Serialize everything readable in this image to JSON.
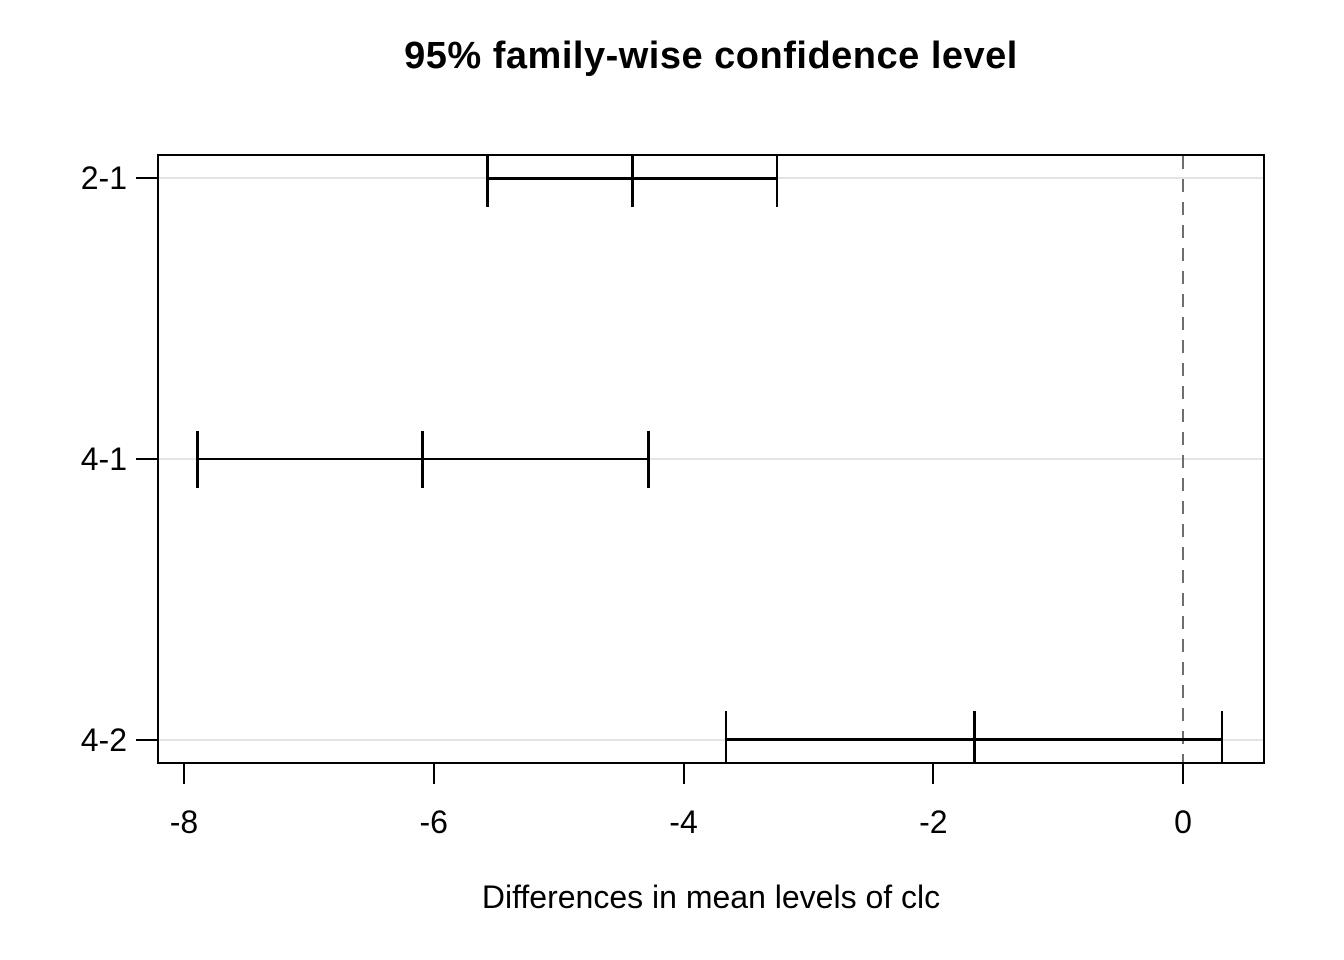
{
  "chart_data": {
    "type": "scatter",
    "variant": "horizontal-confidence-intervals",
    "title": "95% family-wise confidence level",
    "xlabel": "Differences in mean levels of clc",
    "ylabel": "",
    "comparisons": [
      "2-1",
      "4-1",
      "4-2"
    ],
    "intervals": [
      {
        "label": "2-1",
        "lower": -5.57,
        "center": -4.41,
        "upper": -3.25
      },
      {
        "label": "4-1",
        "lower": -7.89,
        "center": -6.09,
        "upper": -4.28
      },
      {
        "label": "4-2",
        "lower": -3.66,
        "center": -1.67,
        "upper": 0.31
      }
    ],
    "x_ticks": [
      -8,
      -6,
      -4,
      -2,
      0
    ],
    "xlim": [
      -8.2,
      0.64
    ],
    "zero_line": {
      "x": 0,
      "style": "dashed"
    },
    "grid": "horizontal-light",
    "legend": "none",
    "colors": {
      "line": "#000000",
      "grid": "#e4e4e4",
      "dashed": "#6e6e6e",
      "background": "#ffffff",
      "text": "#000000"
    }
  }
}
